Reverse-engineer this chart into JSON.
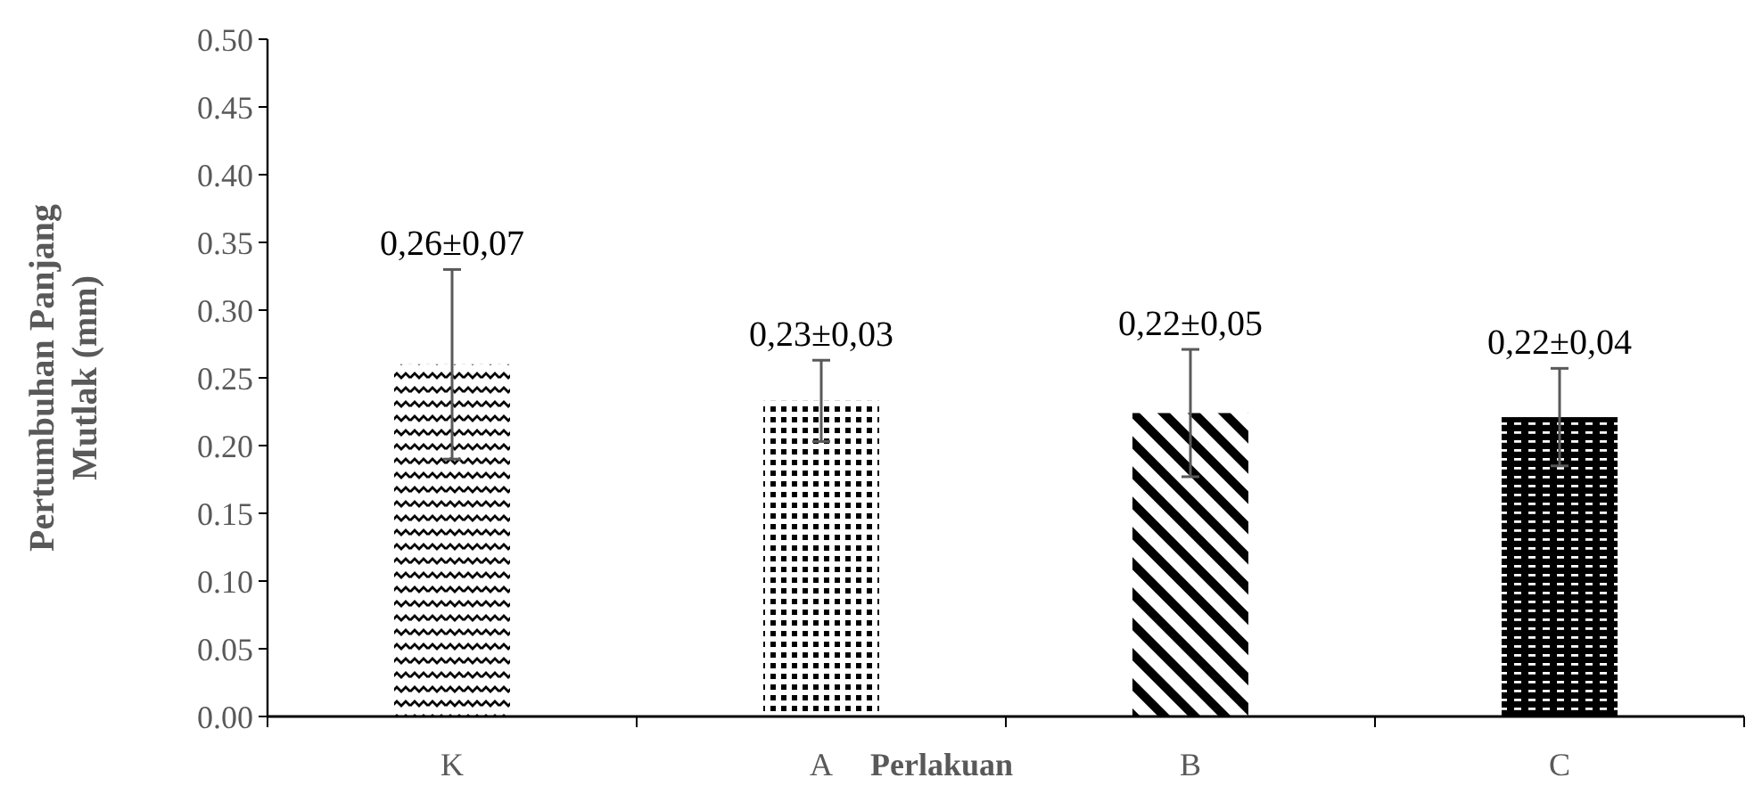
{
  "chart_data": {
    "type": "bar",
    "xlabel": "Perlakuan",
    "ylabel": "Pertumbuhan Panjang Mutlak (mm)",
    "categories": [
      "K",
      "A",
      "B",
      "C"
    ],
    "values": [
      0.26,
      0.233,
      0.224,
      0.221
    ],
    "errors": [
      0.07,
      0.03,
      0.047,
      0.036
    ],
    "value_labels": [
      "0,26±0,07",
      "0,23±0,03",
      "0,22±0,05",
      "0,22±0,04"
    ],
    "colors": [
      "#000000",
      "#000000",
      "#000000",
      "#000000"
    ],
    "ylim": [
      0,
      0.5
    ],
    "yticks": [
      {
        "value": 0,
        "label": "0.00"
      },
      {
        "value": 0.05,
        "label": "0.05"
      },
      {
        "value": 0.1,
        "label": "0.10"
      },
      {
        "value": 0.15,
        "label": "0.15"
      },
      {
        "value": 0.2,
        "label": "0.20"
      },
      {
        "value": 0.25,
        "label": "0.25"
      },
      {
        "value": 0.3,
        "label": "0.30"
      },
      {
        "value": 0.35,
        "label": "0.35"
      },
      {
        "value": 0.4,
        "label": "0.40"
      },
      {
        "value": 0.45,
        "label": "0.45"
      },
      {
        "value": 0.5,
        "label": "0.50"
      }
    ],
    "grid": false
  }
}
